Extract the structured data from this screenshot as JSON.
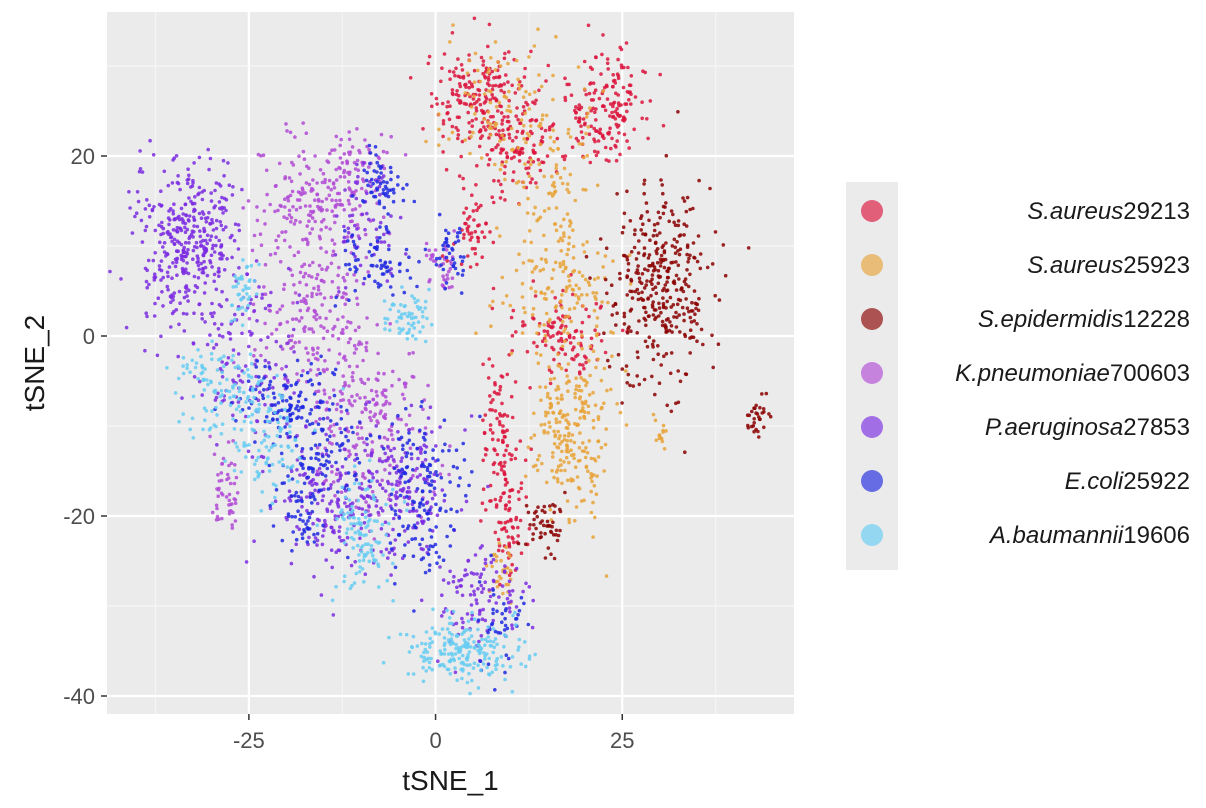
{
  "chart_data": {
    "type": "scatter",
    "xlabel": "tSNE_1",
    "ylabel": "tSNE_2",
    "xlim": [
      -44,
      48
    ],
    "ylim": [
      -42,
      36
    ],
    "x_ticks": [
      -25,
      0,
      25
    ],
    "y_ticks": [
      20,
      0,
      -20,
      -40
    ],
    "grid": true,
    "legend_position": "right",
    "series": [
      {
        "name": "S.aureus29213",
        "species": "S.aureus",
        "strain": "29213",
        "color": "#dc143c",
        "clusters": [
          {
            "cx": 6,
            "cy": 26,
            "sx": 3.5,
            "sy": 3,
            "n": 220
          },
          {
            "cx": 11,
            "cy": 21,
            "sx": 2.5,
            "sy": 2.5,
            "n": 90
          },
          {
            "cx": 24,
            "cy": 25,
            "sx": 2.2,
            "sy": 3,
            "n": 140
          },
          {
            "cx": 19,
            "cy": 24,
            "sx": 2,
            "sy": 2.5,
            "n": 40
          },
          {
            "cx": 5,
            "cy": 12,
            "sx": 1.5,
            "sy": 2,
            "n": 50
          },
          {
            "cx": 17,
            "cy": 0,
            "sx": 3.5,
            "sy": 2.5,
            "n": 110
          },
          {
            "cx": 9,
            "cy": -11,
            "sx": 1.5,
            "sy": 6,
            "n": 110
          },
          {
            "cx": 10,
            "cy": -21,
            "sx": 1.2,
            "sy": 3,
            "n": 50
          }
        ]
      },
      {
        "name": "S.aureus25923",
        "species": "S.aureus",
        "strain": "25923",
        "color": "#e8a33a",
        "clusters": [
          {
            "cx": 9,
            "cy": 26,
            "sx": 4.5,
            "sy": 4,
            "n": 90
          },
          {
            "cx": 15,
            "cy": 16,
            "sx": 3,
            "sy": 5,
            "n": 110
          },
          {
            "cx": 17,
            "cy": 5,
            "sx": 3.5,
            "sy": 3,
            "n": 120
          },
          {
            "cx": 18,
            "cy": -10,
            "sx": 2.5,
            "sy": 5,
            "n": 240
          },
          {
            "cx": 9,
            "cy": -26,
            "sx": 1,
            "sy": 2,
            "n": 30
          },
          {
            "cx": 30,
            "cy": -11,
            "sx": 0.4,
            "sy": 1.2,
            "n": 14
          }
        ]
      },
      {
        "name": "S.epidermidis12228",
        "species": "S.epidermidis",
        "strain": "12228",
        "color": "#8b0000",
        "clusters": [
          {
            "cx": 30,
            "cy": 6,
            "sx": 3.5,
            "sy": 5.5,
            "n": 360
          },
          {
            "cx": 43,
            "cy": -9,
            "sx": 0.8,
            "sy": 1.2,
            "n": 30
          },
          {
            "cx": 15,
            "cy": -21,
            "sx": 1.8,
            "sy": 1.8,
            "n": 50
          }
        ]
      },
      {
        "name": "K.pneumoniae700603",
        "species": "K.pneumoniae",
        "strain": "700603",
        "color": "#b24bd6",
        "clusters": [
          {
            "cx": -17,
            "cy": 14,
            "sx": 3.5,
            "sy": 4,
            "n": 200
          },
          {
            "cx": -11,
            "cy": 19,
            "sx": 2,
            "sy": 2.5,
            "n": 70
          },
          {
            "cx": -16,
            "cy": 2,
            "sx": 4,
            "sy": 4,
            "n": 160
          },
          {
            "cx": -9,
            "cy": -10,
            "sx": 4.5,
            "sy": 5,
            "n": 210
          },
          {
            "cx": -28,
            "cy": -17,
            "sx": 0.9,
            "sy": 2.2,
            "n": 50
          },
          {
            "cx": 1,
            "cy": 8,
            "sx": 1,
            "sy": 2,
            "n": 35
          }
        ]
      },
      {
        "name": "P.aeruginosa27853",
        "species": "P.aeruginosa",
        "strain": "27853",
        "color": "#7b2be2",
        "clusters": [
          {
            "cx": -33,
            "cy": 10,
            "sx": 3.5,
            "sy": 5,
            "n": 400
          },
          {
            "cx": -24,
            "cy": -3,
            "sx": 4,
            "sy": 5,
            "n": 120
          },
          {
            "cx": -14,
            "cy": -18,
            "sx": 4,
            "sy": 4,
            "n": 170
          },
          {
            "cx": -4,
            "cy": -17,
            "sx": 3,
            "sy": 4,
            "n": 150
          },
          {
            "cx": 6,
            "cy": -29,
            "sx": 3,
            "sy": 3,
            "n": 110
          },
          {
            "cx": -10,
            "cy": 12,
            "sx": 2.5,
            "sy": 3,
            "n": 60
          }
        ]
      },
      {
        "name": "E.coli25922",
        "species": "E.coli",
        "strain": "25922",
        "color": "#1f28e0",
        "clusters": [
          {
            "cx": -7,
            "cy": 17,
            "sx": 1.5,
            "sy": 2,
            "n": 60
          },
          {
            "cx": -8,
            "cy": 8,
            "sx": 2.5,
            "sy": 1.8,
            "n": 70
          },
          {
            "cx": 2,
            "cy": 9,
            "sx": 1.2,
            "sy": 1.8,
            "n": 40
          },
          {
            "cx": -20,
            "cy": -7,
            "sx": 3,
            "sy": 2,
            "n": 110
          },
          {
            "cx": -15,
            "cy": -13,
            "sx": 2.5,
            "sy": 2.5,
            "n": 90
          },
          {
            "cx": -2,
            "cy": -17,
            "sx": 3,
            "sy": 5,
            "n": 150
          },
          {
            "cx": -18,
            "cy": -20,
            "sx": 2,
            "sy": 2,
            "n": 50
          },
          {
            "cx": 9,
            "cy": -32,
            "sx": 1.5,
            "sy": 2.5,
            "n": 40
          }
        ]
      },
      {
        "name": "A.baumannii19606",
        "species": "A.baumannii",
        "strain": "19606",
        "color": "#66ccf2",
        "clusters": [
          {
            "cx": -26,
            "cy": 5,
            "sx": 1,
            "sy": 2.2,
            "n": 40
          },
          {
            "cx": -29,
            "cy": -6,
            "sx": 3,
            "sy": 2.5,
            "n": 110
          },
          {
            "cx": -22,
            "cy": -12,
            "sx": 2.5,
            "sy": 3,
            "n": 90
          },
          {
            "cx": -10,
            "cy": -22,
            "sx": 2,
            "sy": 4,
            "n": 110
          },
          {
            "cx": -4,
            "cy": 2,
            "sx": 1.8,
            "sy": 1.5,
            "n": 60
          },
          {
            "cx": 4,
            "cy": -35,
            "sx": 4,
            "sy": 1.8,
            "n": 200
          }
        ]
      }
    ]
  }
}
